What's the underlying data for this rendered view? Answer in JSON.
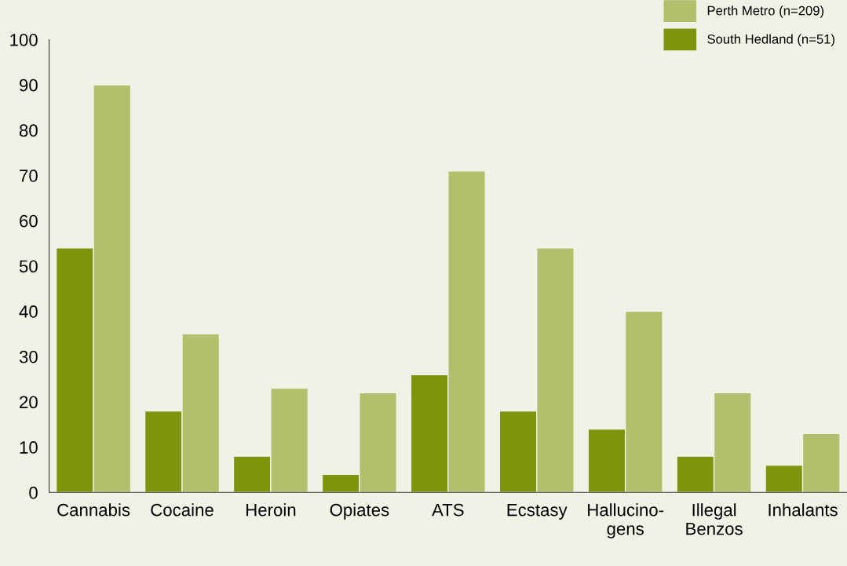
{
  "chart_data": {
    "type": "bar",
    "categories": [
      "Cannabis",
      "Cocaine",
      "Heroin",
      "Opiates",
      "ATS",
      "Ecstasy",
      "Hallucino-\ngens",
      "Illegal\nBenzos",
      "Inhalants"
    ],
    "series": [
      {
        "name": "South Hedland (n=51)",
        "color": "#7f930c",
        "values": [
          54,
          18,
          8,
          4,
          26,
          18,
          14,
          8,
          6
        ]
      },
      {
        "name": "Perth Metro (n=209)",
        "color": "#b2bf6d",
        "values": [
          90,
          35,
          23,
          22,
          71,
          54,
          40,
          22,
          13
        ]
      }
    ],
    "ylim": [
      0,
      100
    ],
    "yticks": [
      0,
      10,
      20,
      30,
      40,
      50,
      60,
      70,
      80,
      90,
      100
    ],
    "grid": false,
    "legend": "top right"
  }
}
